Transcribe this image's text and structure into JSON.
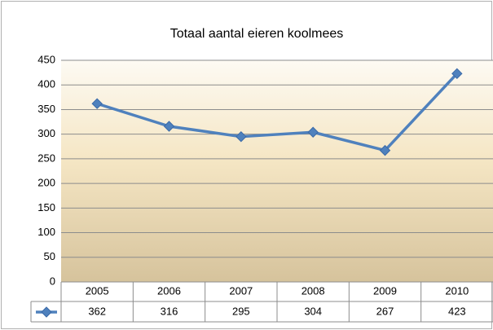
{
  "chart_data": {
    "type": "line",
    "title": "Totaal aantal eieren koolmees",
    "categories": [
      "2005",
      "2006",
      "2007",
      "2008",
      "2009",
      "2010"
    ],
    "series": [
      {
        "color": "#4f81bd",
        "values": [
          362,
          316,
          295,
          304,
          267,
          423
        ]
      }
    ],
    "ylim": [
      0,
      450
    ],
    "yticks": [
      0,
      50,
      100,
      150,
      200,
      250,
      300,
      350,
      400,
      450
    ],
    "grid": true
  }
}
